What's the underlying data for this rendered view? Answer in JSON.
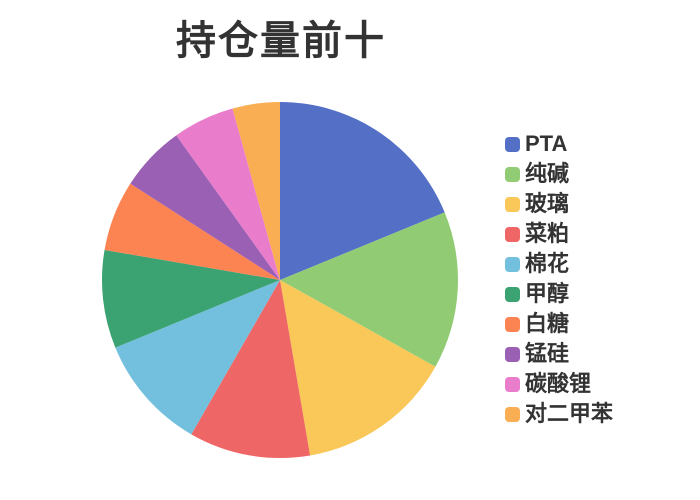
{
  "title": "持仓量前十",
  "background_color": "#ffffff",
  "chart_data": {
    "type": "pie",
    "title": "持仓量前十",
    "title_color": "#333333",
    "legend_text_color": "#333333",
    "legend_position": "right",
    "start_angle_deg": 0,
    "direction": "clockwise",
    "labels_on_slices": false,
    "labels": [
      "PTA",
      "纯碱",
      "玻璃",
      "菜粕",
      "棉花",
      "甲醇",
      "白糖",
      "锰硅",
      "碳酸锂",
      "对二甲苯"
    ],
    "values_percent": [
      18.8,
      14.3,
      14.2,
      11.0,
      10.5,
      8.9,
      6.4,
      6.0,
      5.6,
      4.3
    ],
    "colors": [
      "#5470c6",
      "#91cc75",
      "#fac858",
      "#ee6666",
      "#73c0de",
      "#3ba272",
      "#fc8452",
      "#9a60b4",
      "#ea7ccc",
      "#f9ae53"
    ]
  }
}
